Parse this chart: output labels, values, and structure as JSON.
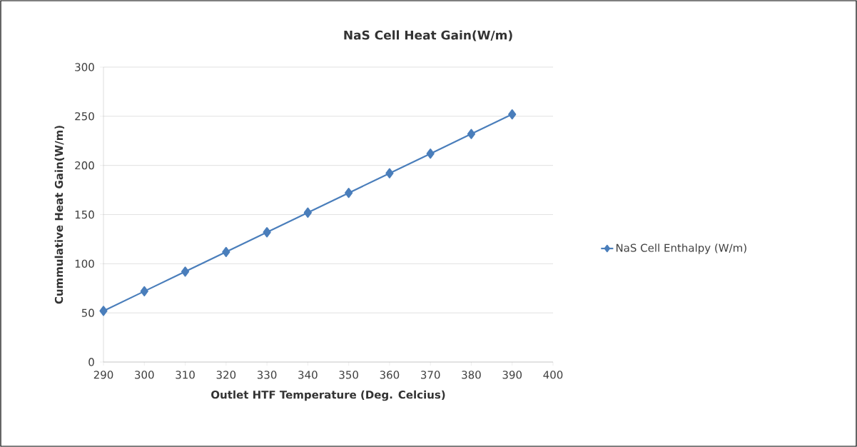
{
  "chart_data": {
    "type": "line",
    "title": "NaS Cell Heat Gain(W/m)",
    "xlabel": "Outlet HTF Temperature (Deg. Celcius)",
    "ylabel": "Cummulative Heat Gain(W/m)",
    "x": [
      290,
      300,
      310,
      320,
      330,
      340,
      350,
      360,
      370,
      380,
      390
    ],
    "series": [
      {
        "name": "NaS Cell Enthalpy (W/m)",
        "color": "#4a7ebb",
        "values": [
          52,
          72,
          92,
          112,
          132,
          152,
          172,
          192,
          212,
          232,
          252
        ]
      }
    ],
    "xlim": [
      290,
      400
    ],
    "ylim": [
      0,
      300
    ],
    "xticks": [
      290,
      300,
      310,
      320,
      330,
      340,
      350,
      360,
      370,
      380,
      390,
      400
    ],
    "yticks": [
      0,
      50,
      100,
      150,
      200,
      250,
      300
    ],
    "grid": "y",
    "legend": "right",
    "marker": "diamond",
    "line_style": "solid"
  }
}
